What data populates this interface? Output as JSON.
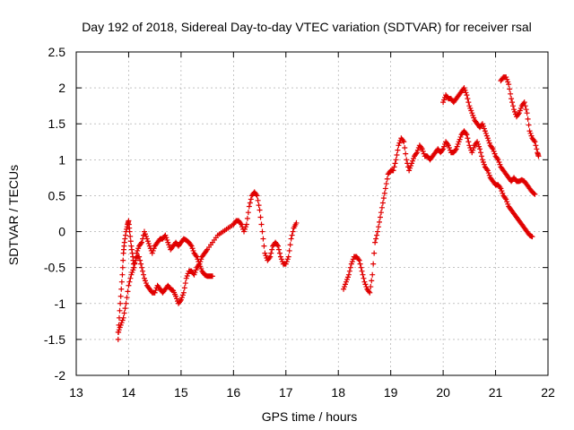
{
  "chart_data": {
    "type": "scatter",
    "title": "Day 192 of 2018, Sidereal Day-to-day VTEC variation (SDTVAR) for receiver rsal",
    "xlabel": "GPS time / hours",
    "ylabel": "SDTVAR / TECUs",
    "xlim": [
      13,
      22
    ],
    "ylim": [
      -2,
      2.5
    ],
    "xticks": [
      13,
      14,
      15,
      16,
      17,
      18,
      19,
      20,
      21,
      22
    ],
    "yticks": [
      -2,
      -1.5,
      -1,
      -0.5,
      0,
      0.5,
      1,
      1.5,
      2,
      2.5
    ],
    "xtick_labels": [
      "13",
      "14",
      "15",
      "16",
      "17",
      "18",
      "19",
      "20",
      "21",
      "22"
    ],
    "ytick_labels": [
      "-2",
      "-1.5",
      "-1",
      "-0.5",
      "0",
      "0.5",
      "1",
      "1.5",
      "2",
      "2.5"
    ],
    "grid": true,
    "marker": "+",
    "color": "#e00000",
    "series": [
      {
        "name": "segment-1a",
        "points": [
          [
            13.8,
            -1.5
          ],
          [
            13.82,
            -1.2
          ],
          [
            13.85,
            -0.9
          ],
          [
            13.88,
            -0.6
          ],
          [
            13.9,
            -0.3
          ],
          [
            13.92,
            -0.15
          ],
          [
            13.95,
            0.0
          ],
          [
            13.98,
            0.1
          ],
          [
            14.0,
            0.15
          ],
          [
            14.02,
            0.0
          ],
          [
            14.05,
            -0.2
          ],
          [
            14.08,
            -0.35
          ],
          [
            14.1,
            -0.5
          ],
          [
            14.15,
            -0.3
          ],
          [
            14.2,
            -0.2
          ],
          [
            14.25,
            -0.15
          ],
          [
            14.3,
            0.0
          ],
          [
            14.35,
            -0.1
          ],
          [
            14.4,
            -0.2
          ],
          [
            14.45,
            -0.3
          ],
          [
            14.5,
            -0.2
          ],
          [
            14.55,
            -0.15
          ],
          [
            14.6,
            -0.1
          ],
          [
            14.65,
            -0.1
          ],
          [
            14.7,
            -0.05
          ],
          [
            14.75,
            -0.15
          ],
          [
            14.8,
            -0.25
          ],
          [
            14.85,
            -0.2
          ],
          [
            14.9,
            -0.15
          ],
          [
            14.95,
            -0.2
          ],
          [
            15.0,
            -0.15
          ],
          [
            15.05,
            -0.1
          ],
          [
            15.1,
            -0.12
          ],
          [
            15.15,
            -0.15
          ],
          [
            15.2,
            -0.2
          ],
          [
            15.25,
            -0.3
          ],
          [
            15.3,
            -0.35
          ],
          [
            15.35,
            -0.45
          ],
          [
            15.4,
            -0.55
          ],
          [
            15.45,
            -0.6
          ],
          [
            15.5,
            -0.62
          ],
          [
            15.55,
            -0.62
          ],
          [
            15.6,
            -0.62
          ]
        ]
      },
      {
        "name": "segment-1b",
        "points": [
          [
            13.8,
            -1.4
          ],
          [
            13.85,
            -1.3
          ],
          [
            13.9,
            -1.2
          ],
          [
            13.95,
            -1.0
          ],
          [
            14.0,
            -0.75
          ],
          [
            14.05,
            -0.6
          ],
          [
            14.1,
            -0.5
          ],
          [
            14.15,
            -0.35
          ],
          [
            14.2,
            -0.35
          ],
          [
            14.25,
            -0.5
          ],
          [
            14.3,
            -0.65
          ],
          [
            14.35,
            -0.75
          ],
          [
            14.4,
            -0.8
          ],
          [
            14.45,
            -0.85
          ],
          [
            14.5,
            -0.85
          ],
          [
            14.55,
            -0.75
          ],
          [
            14.6,
            -0.8
          ],
          [
            14.65,
            -0.85
          ],
          [
            14.7,
            -0.8
          ],
          [
            14.75,
            -0.75
          ],
          [
            14.8,
            -0.8
          ],
          [
            14.85,
            -0.82
          ],
          [
            14.9,
            -0.9
          ],
          [
            14.95,
            -1.0
          ],
          [
            15.0,
            -0.95
          ],
          [
            15.05,
            -0.85
          ],
          [
            15.1,
            -0.65
          ],
          [
            15.15,
            -0.55
          ],
          [
            15.2,
            -0.55
          ],
          [
            15.25,
            -0.6
          ],
          [
            15.3,
            -0.5
          ],
          [
            15.35,
            -0.45
          ],
          [
            15.4,
            -0.35
          ],
          [
            15.45,
            -0.3
          ],
          [
            15.5,
            -0.25
          ],
          [
            15.6,
            -0.15
          ],
          [
            15.7,
            -0.05
          ],
          [
            15.8,
            0.0
          ],
          [
            15.9,
            0.05
          ],
          [
            16.0,
            0.1
          ],
          [
            16.05,
            0.15
          ],
          [
            16.1,
            0.15
          ],
          [
            16.15,
            0.1
          ],
          [
            16.2,
            0.0
          ],
          [
            16.25,
            0.1
          ],
          [
            16.3,
            0.35
          ],
          [
            16.35,
            0.5
          ],
          [
            16.4,
            0.55
          ],
          [
            16.45,
            0.5
          ],
          [
            16.5,
            0.3
          ],
          [
            16.55,
            0.0
          ],
          [
            16.6,
            -0.3
          ],
          [
            16.65,
            -0.4
          ],
          [
            16.7,
            -0.35
          ],
          [
            16.75,
            -0.2
          ],
          [
            16.8,
            -0.15
          ],
          [
            16.85,
            -0.2
          ],
          [
            16.9,
            -0.35
          ],
          [
            16.95,
            -0.45
          ],
          [
            17.0,
            -0.45
          ],
          [
            17.05,
            -0.35
          ],
          [
            17.1,
            -0.1
          ],
          [
            17.15,
            0.05
          ],
          [
            17.2,
            0.12
          ]
        ]
      },
      {
        "name": "segment-2",
        "points": [
          [
            18.1,
            -0.8
          ],
          [
            18.15,
            -0.7
          ],
          [
            18.2,
            -0.6
          ],
          [
            18.25,
            -0.45
          ],
          [
            18.3,
            -0.35
          ],
          [
            18.35,
            -0.35
          ],
          [
            18.4,
            -0.4
          ],
          [
            18.45,
            -0.55
          ],
          [
            18.5,
            -0.7
          ],
          [
            18.55,
            -0.8
          ],
          [
            18.6,
            -0.85
          ],
          [
            18.65,
            -0.6
          ],
          [
            18.7,
            -0.15
          ],
          [
            18.75,
            0.0
          ],
          [
            18.8,
            0.2
          ],
          [
            18.85,
            0.4
          ],
          [
            18.9,
            0.6
          ],
          [
            18.95,
            0.8
          ],
          [
            19.0,
            0.85
          ],
          [
            19.05,
            0.85
          ],
          [
            19.1,
            1.0
          ],
          [
            19.15,
            1.2
          ],
          [
            19.2,
            1.3
          ],
          [
            19.25,
            1.25
          ],
          [
            19.3,
            1.0
          ],
          [
            19.35,
            0.85
          ],
          [
            19.4,
            0.95
          ],
          [
            19.45,
            1.05
          ],
          [
            19.5,
            1.1
          ],
          [
            19.55,
            1.2
          ],
          [
            19.6,
            1.15
          ],
          [
            19.65,
            1.05
          ],
          [
            19.7,
            1.05
          ],
          [
            19.75,
            1.0
          ],
          [
            19.8,
            1.05
          ],
          [
            19.85,
            1.1
          ],
          [
            19.9,
            1.15
          ],
          [
            19.95,
            1.1
          ],
          [
            20.0,
            1.15
          ],
          [
            20.05,
            1.25
          ],
          [
            20.1,
            1.2
          ],
          [
            20.15,
            1.1
          ],
          [
            20.2,
            1.1
          ],
          [
            20.25,
            1.15
          ],
          [
            20.3,
            1.25
          ],
          [
            20.35,
            1.35
          ],
          [
            20.4,
            1.4
          ],
          [
            20.45,
            1.35
          ],
          [
            20.5,
            1.2
          ],
          [
            20.55,
            1.1
          ],
          [
            20.6,
            1.2
          ],
          [
            20.65,
            1.25
          ],
          [
            20.7,
            1.15
          ],
          [
            20.75,
            1.0
          ],
          [
            20.8,
            0.9
          ],
          [
            20.85,
            0.85
          ],
          [
            20.9,
            0.75
          ],
          [
            20.95,
            0.7
          ],
          [
            21.0,
            0.65
          ],
          [
            21.05,
            0.65
          ],
          [
            21.1,
            0.6
          ],
          [
            21.15,
            0.5
          ],
          [
            21.2,
            0.45
          ],
          [
            21.25,
            0.35
          ],
          [
            21.3,
            0.3
          ],
          [
            21.35,
            0.25
          ],
          [
            21.4,
            0.2
          ],
          [
            21.45,
            0.15
          ],
          [
            21.5,
            0.1
          ],
          [
            21.55,
            0.05
          ],
          [
            21.6,
            0.0
          ],
          [
            21.65,
            -0.05
          ],
          [
            21.7,
            -0.07
          ]
        ]
      },
      {
        "name": "segment-3",
        "points": [
          [
            20.0,
            1.8
          ],
          [
            20.05,
            1.9
          ],
          [
            20.1,
            1.85
          ],
          [
            20.15,
            1.85
          ],
          [
            20.2,
            1.8
          ],
          [
            20.25,
            1.85
          ],
          [
            20.3,
            1.9
          ],
          [
            20.35,
            1.95
          ],
          [
            20.4,
            2.0
          ],
          [
            20.45,
            1.9
          ],
          [
            20.5,
            1.75
          ],
          [
            20.55,
            1.65
          ],
          [
            20.6,
            1.55
          ],
          [
            20.65,
            1.5
          ],
          [
            20.7,
            1.45
          ],
          [
            20.75,
            1.5
          ],
          [
            20.8,
            1.4
          ],
          [
            20.85,
            1.3
          ],
          [
            20.9,
            1.2
          ],
          [
            20.95,
            1.15
          ],
          [
            21.0,
            1.05
          ],
          [
            21.05,
            1.0
          ],
          [
            21.1,
            0.9
          ],
          [
            21.15,
            0.85
          ],
          [
            21.2,
            0.8
          ],
          [
            21.25,
            0.75
          ],
          [
            21.3,
            0.7
          ],
          [
            21.35,
            0.75
          ],
          [
            21.4,
            0.7
          ],
          [
            21.45,
            0.7
          ],
          [
            21.5,
            0.72
          ],
          [
            21.55,
            0.7
          ],
          [
            21.6,
            0.65
          ],
          [
            21.65,
            0.6
          ],
          [
            21.7,
            0.55
          ],
          [
            21.75,
            0.52
          ]
        ]
      },
      {
        "name": "segment-4",
        "points": [
          [
            21.1,
            2.1
          ],
          [
            21.15,
            2.15
          ],
          [
            21.2,
            2.15
          ],
          [
            21.25,
            2.05
          ],
          [
            21.3,
            1.85
          ],
          [
            21.35,
            1.7
          ],
          [
            21.4,
            1.6
          ],
          [
            21.45,
            1.65
          ],
          [
            21.5,
            1.75
          ],
          [
            21.55,
            1.8
          ],
          [
            21.6,
            1.65
          ],
          [
            21.65,
            1.4
          ],
          [
            21.7,
            1.3
          ],
          [
            21.75,
            1.25
          ],
          [
            21.8,
            1.1
          ],
          [
            21.82,
            1.05
          ]
        ]
      }
    ]
  }
}
